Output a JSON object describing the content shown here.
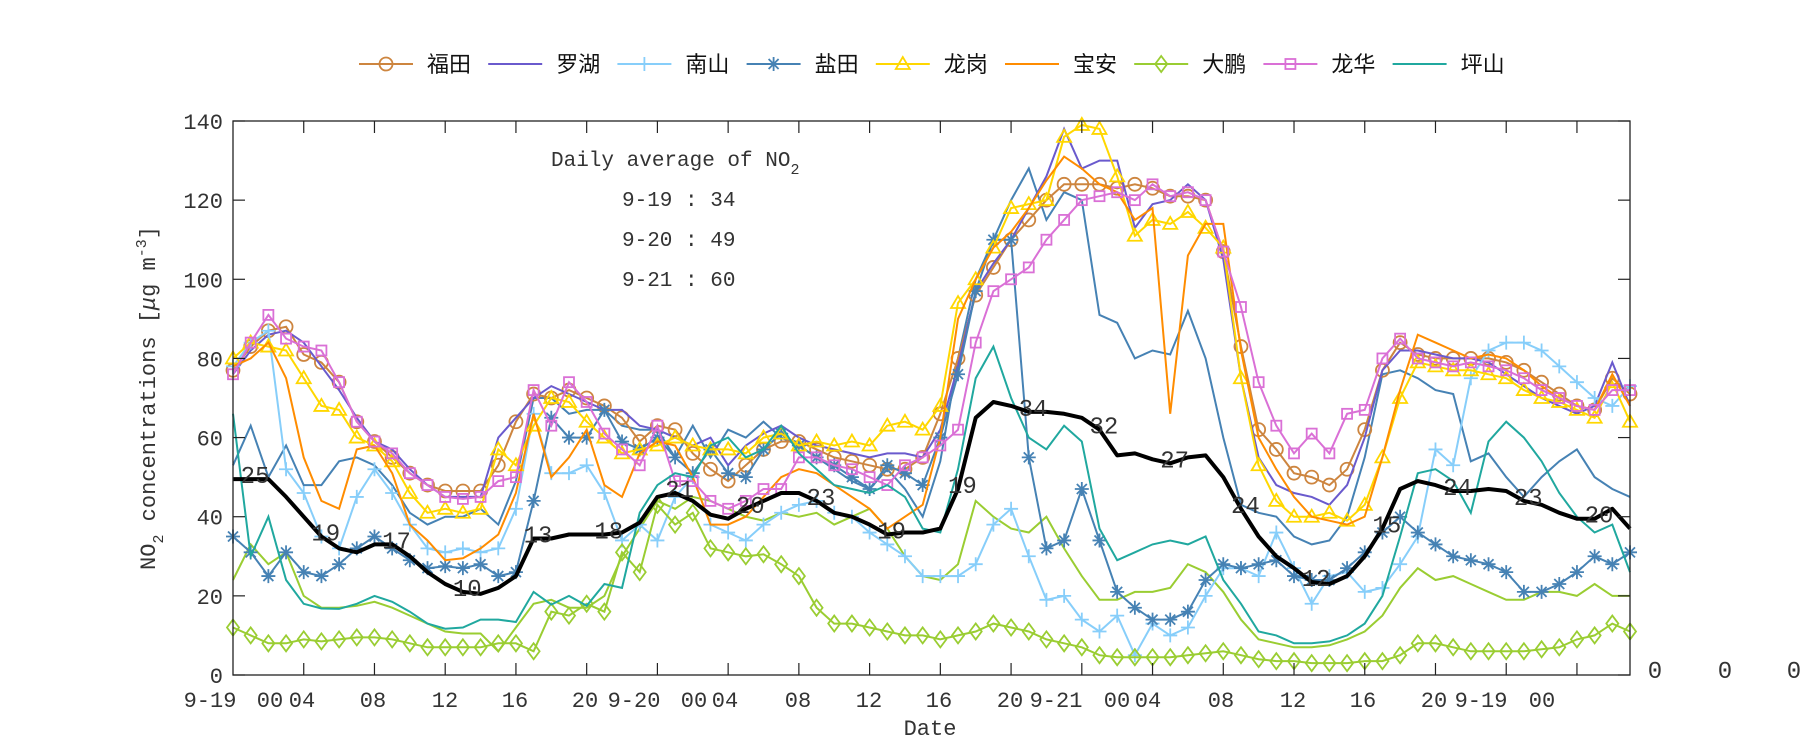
{
  "chart_data": {
    "type": "line",
    "xlabel": "Date",
    "ylabel": "NO2 concentrations [μg m-3]",
    "ylabel_parts": {
      "base": "NO",
      "sub": "2",
      "rest": " concentrations [",
      "mu": "μ",
      "rest2": "g m",
      "sup": "-3",
      "end": "]"
    },
    "ylim": [
      0,
      140
    ],
    "yticks": [
      0,
      20,
      40,
      60,
      80,
      100,
      120,
      140
    ],
    "x_tick_labels": [
      "9-19",
      "00",
      "04",
      "08",
      "12",
      "16",
      "20",
      "9-20",
      "00",
      "04",
      "08",
      "12",
      "16",
      "20",
      "9-21",
      "00",
      "04",
      "08",
      "12",
      "16",
      "20",
      "9-19",
      "00"
    ],
    "extra_right_labels": [
      "0",
      "0",
      "0"
    ],
    "grid": false,
    "legend_placement": "top",
    "textbox": {
      "title": "Daily average of NO",
      "title_sub": "2",
      "lines": [
        "9-19 : 34",
        "9-20 : 49",
        "9-21 : 60"
      ]
    },
    "series": [
      {
        "name": "福田",
        "color": "#CD853F",
        "marker": "circle",
        "values": [
          77,
          83,
          87,
          88,
          81,
          79,
          74,
          64,
          59,
          55,
          51,
          48,
          46.5,
          46.5,
          46.5,
          53,
          64,
          71,
          70,
          72,
          70,
          68,
          65,
          59,
          63,
          62,
          56,
          52,
          49,
          53,
          57,
          59,
          59,
          57,
          55,
          54,
          53,
          52,
          52,
          55,
          66,
          80,
          96,
          103,
          110,
          115,
          120,
          124,
          124,
          124,
          123,
          124,
          123,
          121,
          121,
          120,
          107,
          83,
          62,
          57,
          51,
          50,
          48,
          52,
          62,
          77,
          84,
          81,
          80,
          80,
          80,
          80,
          79,
          77,
          74,
          71,
          68,
          67,
          75,
          71
        ]
      },
      {
        "name": "罗湖",
        "color": "#6A5ACD",
        "marker": "none",
        "values": [
          76,
          82,
          86,
          87,
          84,
          78,
          72,
          65,
          59,
          57,
          52,
          48,
          45,
          45,
          45,
          60,
          65,
          70,
          73,
          71,
          69,
          67,
          67,
          63,
          62,
          60,
          58,
          60,
          53,
          58,
          61,
          63,
          60,
          58,
          57,
          56,
          55,
          56,
          56,
          55,
          62,
          78,
          97,
          104,
          110,
          118,
          126,
          138,
          128,
          130,
          130,
          113,
          119,
          120,
          124,
          120,
          105,
          75,
          55,
          48,
          46,
          45,
          43,
          48,
          60,
          77,
          82,
          82,
          81,
          80,
          80,
          79,
          76,
          73,
          70,
          68,
          66,
          68,
          79,
          68
        ]
      },
      {
        "name": "南山",
        "color": "#87CEFA",
        "marker": "plus",
        "values": [
          78,
          84,
          87,
          52,
          46,
          35,
          32,
          45,
          52,
          46,
          38,
          32,
          31,
          32,
          31,
          32,
          42,
          66,
          51,
          51,
          53,
          46,
          34,
          38,
          34,
          45,
          50,
          38,
          36,
          34,
          38,
          41,
          43,
          44,
          41,
          40,
          36,
          33,
          30,
          25,
          25,
          25,
          28,
          38,
          42,
          30,
          19,
          20,
          14,
          11,
          15,
          5,
          13,
          10,
          12,
          20,
          27,
          27,
          25,
          36,
          27,
          18,
          25,
          26,
          21,
          22,
          28,
          35,
          57,
          53,
          75,
          82,
          84,
          84,
          82,
          78,
          74,
          70,
          68,
          73
        ]
      },
      {
        "name": "盐田",
        "color": "#4682B4",
        "marker": "asterisk",
        "values": [
          35,
          31,
          25,
          31,
          26,
          25,
          28,
          32,
          35,
          32,
          29,
          27,
          27.5,
          27,
          28,
          25,
          26,
          44,
          65,
          60,
          60,
          67,
          59,
          57,
          60,
          55,
          51,
          57,
          51,
          50,
          57,
          61,
          58,
          55,
          53,
          50,
          47,
          53,
          51,
          48,
          60,
          76,
          97,
          110,
          110,
          55,
          32,
          34,
          47,
          34,
          21,
          17,
          14,
          14,
          16,
          24,
          28,
          27,
          28,
          29,
          25,
          24,
          24,
          27,
          31,
          36,
          40,
          36,
          33,
          30,
          29,
          28,
          26,
          21,
          21,
          23,
          26,
          30,
          28,
          31
        ]
      },
      {
        "name": "龙岗",
        "color": "#FFD700",
        "marker": "triangle",
        "values": [
          80,
          84,
          83,
          82,
          75,
          68,
          67,
          60,
          58,
          54,
          46,
          41,
          42,
          41,
          42,
          57,
          53,
          63,
          70,
          69,
          64,
          60,
          56,
          57,
          58,
          60,
          58,
          57,
          57,
          56,
          60,
          61,
          58,
          59,
          58,
          59,
          58,
          63,
          64,
          62,
          68,
          94,
          100,
          108,
          118,
          119,
          120,
          136,
          139,
          138,
          126,
          111,
          115,
          114,
          117,
          113,
          108,
          75,
          53,
          44,
          40,
          40,
          41,
          39,
          43,
          55,
          70,
          79,
          78,
          77,
          77,
          76,
          75,
          72,
          70,
          69,
          67,
          65,
          74,
          64
        ]
      },
      {
        "name": "宝安",
        "color": "#FF8C00",
        "marker": "none",
        "values": [
          78,
          80,
          84,
          75,
          55,
          44,
          42,
          57,
          58,
          51,
          38,
          34,
          29,
          29.5,
          32,
          35.5,
          46,
          66,
          50,
          55,
          62,
          48,
          45,
          56,
          59,
          58,
          50,
          38,
          38,
          40,
          45,
          50,
          52,
          51,
          48,
          45,
          42,
          37,
          40,
          43,
          60,
          90,
          100,
          108,
          112,
          118,
          125,
          131,
          128,
          124,
          122,
          115,
          118,
          66,
          106,
          114,
          114,
          82,
          60,
          52,
          45,
          40,
          39,
          38,
          40,
          55,
          72,
          86,
          84,
          82,
          80,
          81,
          80,
          77,
          73,
          70,
          68,
          67,
          76,
          68
        ]
      },
      {
        "name": "大鹏",
        "color": "#9ACD32",
        "marker": "diamond",
        "values": [
          12,
          10,
          8,
          8,
          9,
          8.5,
          9,
          9.5,
          9.5,
          9,
          8,
          7,
          7,
          7,
          7,
          8,
          8,
          6,
          16,
          15,
          18,
          16,
          31,
          26,
          43,
          38,
          41,
          32,
          31,
          30,
          30.5,
          28,
          25,
          17,
          13,
          13,
          12,
          11,
          10,
          10,
          9,
          10,
          11,
          13,
          12,
          11,
          9,
          8,
          7,
          5,
          4.5,
          4.5,
          4.5,
          4.5,
          5,
          5.5,
          6,
          5,
          4,
          3.5,
          3.5,
          3,
          3,
          3,
          3.5,
          3.5,
          5,
          8,
          8,
          7,
          6,
          6,
          6,
          6,
          6.5,
          7,
          9,
          10,
          13,
          11
        ]
      },
      {
        "name": "龙华",
        "color": "#DA70D6",
        "marker": "square",
        "values": [
          76,
          84,
          91,
          85,
          83,
          82,
          74,
          64,
          59,
          56,
          51,
          48,
          45,
          44.5,
          45,
          49,
          50,
          72,
          63,
          74,
          69,
          61,
          57,
          53,
          63,
          49,
          49,
          44,
          42,
          44,
          47,
          47,
          55,
          55,
          53,
          52,
          50,
          48,
          53,
          55,
          58,
          62,
          84,
          97,
          100,
          103,
          110,
          115,
          120,
          121,
          122,
          120,
          124,
          121,
          122,
          120,
          107,
          93,
          74,
          63,
          56,
          61,
          56,
          66,
          67,
          80,
          85,
          80,
          79,
          78,
          79,
          78,
          77,
          75,
          72,
          70,
          68,
          67,
          72,
          72
        ]
      },
      {
        "name": "坪山",
        "color": "#20A89F",
        "marker": "none",
        "values": [
          66,
          30,
          40,
          24,
          18,
          16.8,
          16.7,
          18,
          20,
          18.5,
          16,
          13,
          11.7,
          12,
          14,
          14,
          13.4,
          21,
          17.8,
          20,
          17.5,
          23,
          22,
          41,
          48,
          51,
          50,
          58,
          60,
          55,
          57,
          63,
          56,
          52,
          48,
          47,
          46,
          48,
          45,
          37,
          36,
          52,
          75,
          83,
          70,
          60,
          57,
          63,
          59,
          37,
          29,
          31,
          33,
          34,
          33,
          35,
          24,
          18,
          11,
          10,
          8,
          8,
          8.5,
          10,
          13,
          20,
          35,
          51,
          52,
          49,
          41,
          59,
          64,
          60,
          54,
          46,
          40,
          36,
          38,
          26
        ]
      },
      {
        "color": "#9ACD32",
        "marker": "none",
        "values": [
          24,
          33,
          28,
          31,
          20,
          17,
          17,
          17.5,
          18.5,
          17,
          15,
          13,
          11,
          10.5,
          10.5,
          6,
          12,
          18,
          19,
          17,
          17,
          20,
          30,
          37,
          44,
          42,
          45,
          44,
          42,
          40,
          39,
          41,
          40,
          41,
          38,
          40,
          42,
          37,
          30,
          25,
          24,
          28,
          44,
          40,
          37,
          36,
          40,
          32,
          25,
          19,
          19,
          21,
          21,
          22,
          28,
          26,
          21,
          14,
          9,
          8,
          7,
          7,
          7.5,
          9,
          11,
          15,
          22,
          27,
          24,
          25,
          23,
          21,
          19,
          19,
          21,
          21,
          20,
          23,
          20,
          20
        ]
      },
      {
        "color": "#4682B4",
        "marker": "none",
        "values": [
          53,
          63,
          50,
          58,
          48,
          48,
          54,
          55,
          53,
          48,
          41,
          38,
          40,
          40,
          42,
          38,
          49,
          70,
          70,
          66,
          67,
          67,
          63,
          62,
          62,
          55,
          63,
          55,
          62,
          60,
          64,
          60,
          58,
          55,
          52,
          49,
          47,
          52,
          47,
          40,
          54,
          80,
          100,
          110,
          120,
          128,
          115,
          122,
          120,
          91,
          89,
          80,
          82,
          81,
          92,
          80,
          60,
          43,
          41,
          40,
          35,
          33,
          34,
          40,
          55,
          76,
          77,
          75,
          72,
          71,
          54,
          56,
          50,
          45,
          50,
          54,
          57,
          50,
          47,
          45
        ]
      }
    ],
    "mean_series": {
      "color": "#000000",
      "values": [
        49.5,
        49.5,
        49.5,
        45,
        40,
        35,
        32,
        31,
        33,
        33,
        30,
        26,
        23,
        21,
        20.5,
        22,
        25,
        34.5,
        34.5,
        35.5,
        35.5,
        35.5,
        36,
        38.5,
        45,
        46,
        44,
        40.5,
        39.5,
        42,
        44,
        46,
        46,
        44,
        41,
        40,
        38,
        35.5,
        36,
        36,
        37,
        47,
        65,
        69,
        68,
        66.5,
        66.5,
        66,
        65,
        62,
        55.5,
        56,
        54.5,
        53.5,
        55,
        55.5,
        50,
        42,
        35,
        30,
        27,
        23.5,
        23,
        25,
        30,
        37,
        47,
        49,
        48,
        46.5,
        46.5,
        47,
        46.5,
        44,
        43,
        41,
        39.5,
        39.5,
        42,
        37
      ]
    },
    "annotations": [
      {
        "hour": 1,
        "text": "25"
      },
      {
        "hour": 5,
        "text": "19"
      },
      {
        "hour": 9,
        "text": "17"
      },
      {
        "hour": 13,
        "text": "10"
      },
      {
        "hour": 17,
        "text": "13"
      },
      {
        "hour": 21,
        "text": "18"
      },
      {
        "hour": 25,
        "text": "21"
      },
      {
        "hour": 29,
        "text": "20"
      },
      {
        "hour": 33,
        "text": "23"
      },
      {
        "hour": 37,
        "text": "19"
      },
      {
        "hour": 41,
        "text": "19"
      },
      {
        "hour": 45,
        "text": "34"
      },
      {
        "hour": 49,
        "text": "32"
      },
      {
        "hour": 53,
        "text": "27"
      },
      {
        "hour": 57,
        "text": "24"
      },
      {
        "hour": 61,
        "text": "12"
      },
      {
        "hour": 65,
        "text": "15"
      },
      {
        "hour": 69,
        "text": "24"
      },
      {
        "hour": 73,
        "text": "23"
      },
      {
        "hour": 77,
        "text": "20"
      }
    ]
  }
}
